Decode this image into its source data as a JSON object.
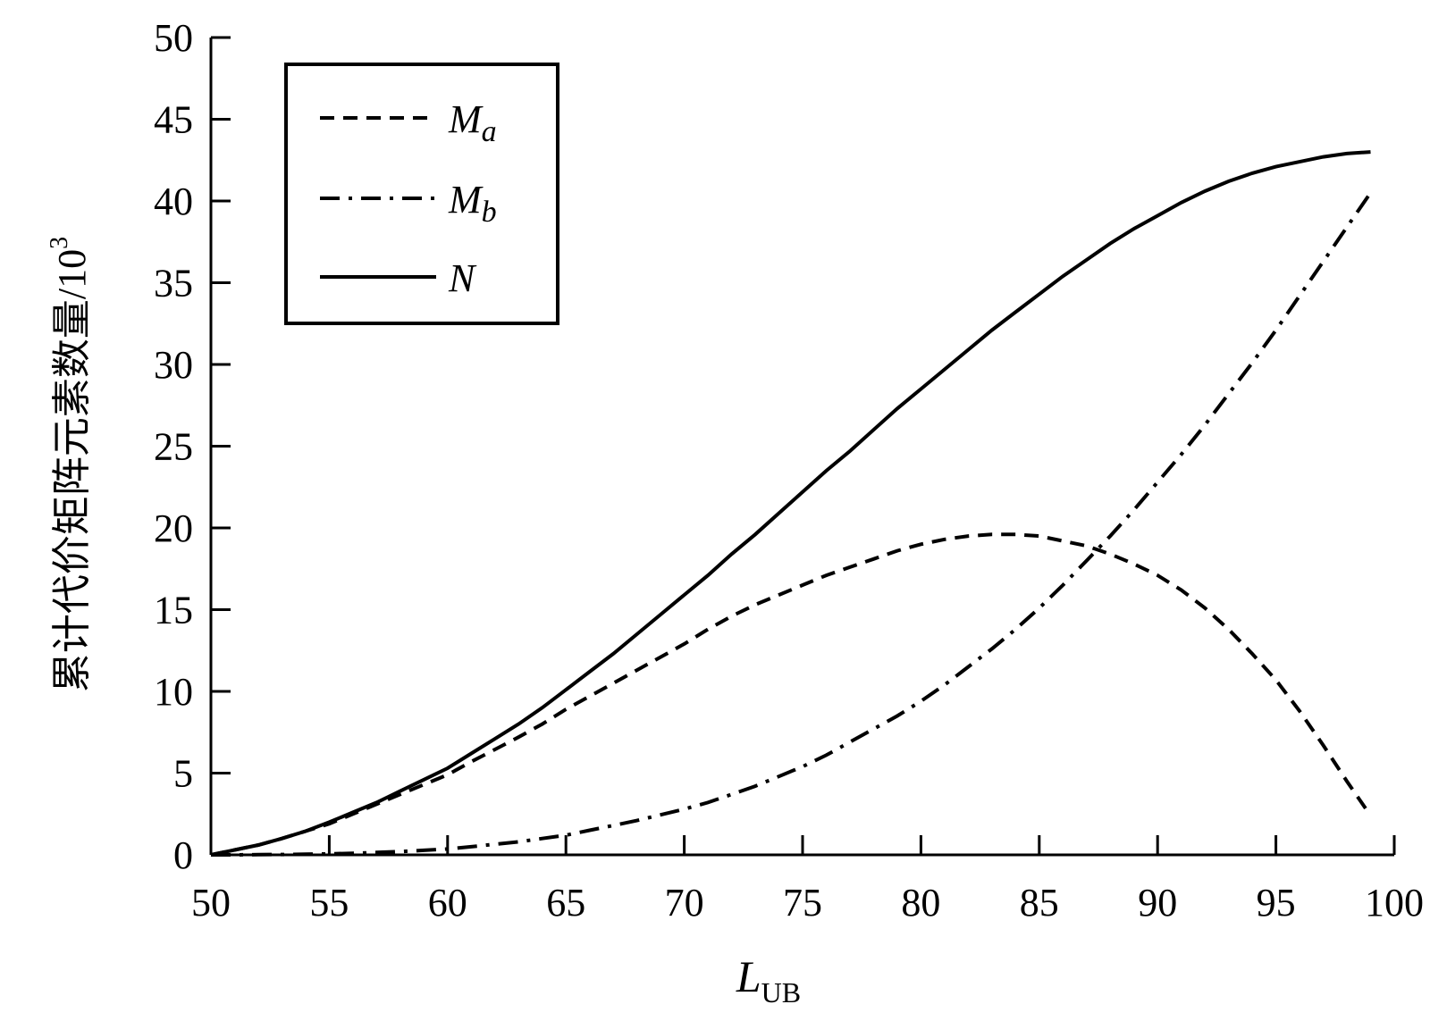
{
  "chart_data": {
    "type": "line",
    "title": "",
    "xlabel": {
      "main": "L",
      "sub": "UB"
    },
    "ylabel": {
      "text": "累计代价矩阵元素数量/10",
      "sup": "3"
    },
    "xlim": [
      50,
      100
    ],
    "ylim": [
      0,
      50
    ],
    "xticks": [
      "50",
      "55",
      "60",
      "65",
      "70",
      "75",
      "80",
      "85",
      "90",
      "95",
      "100"
    ],
    "yticks": [
      "0",
      "5",
      "10",
      "15",
      "20",
      "25",
      "30",
      "35",
      "40",
      "45",
      "50"
    ],
    "grid": false,
    "legend_position": "top-left",
    "x": [
      50,
      51,
      52,
      53,
      54,
      55,
      56,
      57,
      58,
      59,
      60,
      61,
      62,
      63,
      64,
      65,
      66,
      67,
      68,
      69,
      70,
      71,
      72,
      73,
      74,
      75,
      76,
      77,
      78,
      79,
      80,
      81,
      82,
      83,
      84,
      85,
      86,
      87,
      88,
      89,
      90,
      91,
      92,
      93,
      94,
      95,
      96,
      97,
      98,
      99
    ],
    "series": [
      {
        "name": "M",
        "sub": "a",
        "style": "dashed",
        "values": [
          0.0,
          0.3,
          0.6,
          1.0,
          1.45,
          1.9,
          2.5,
          3.1,
          3.7,
          4.3,
          4.9,
          5.7,
          6.45,
          7.2,
          8.0,
          8.9,
          9.7,
          10.5,
          11.3,
          12.1,
          12.9,
          13.8,
          14.6,
          15.3,
          15.9,
          16.5,
          17.1,
          17.6,
          18.1,
          18.6,
          19.0,
          19.3,
          19.5,
          19.6,
          19.6,
          19.5,
          19.2,
          18.9,
          18.4,
          17.8,
          17.1,
          16.2,
          15.1,
          13.8,
          12.3,
          10.7,
          8.8,
          6.7,
          4.5,
          2.4
        ]
      },
      {
        "name": "M",
        "sub": "b",
        "style": "dash-dot",
        "values": [
          0.0,
          0.0,
          0.01,
          0.02,
          0.04,
          0.06,
          0.1,
          0.15,
          0.2,
          0.28,
          0.36,
          0.5,
          0.65,
          0.8,
          1.0,
          1.2,
          1.5,
          1.8,
          2.1,
          2.45,
          2.8,
          3.2,
          3.7,
          4.2,
          4.8,
          5.4,
          6.1,
          6.9,
          7.7,
          8.5,
          9.4,
          10.4,
          11.5,
          12.6,
          13.8,
          15.1,
          16.5,
          18.0,
          19.5,
          21.1,
          22.8,
          24.5,
          26.3,
          28.2,
          30.1,
          32.1,
          34.2,
          36.3,
          38.4,
          40.5
        ]
      },
      {
        "name": "N",
        "sub": "",
        "style": "solid",
        "values": [
          0.0,
          0.3,
          0.6,
          1.0,
          1.45,
          2.0,
          2.6,
          3.2,
          3.9,
          4.6,
          5.3,
          6.2,
          7.1,
          8.0,
          9.0,
          10.1,
          11.2,
          12.3,
          13.5,
          14.7,
          15.9,
          17.1,
          18.4,
          19.6,
          20.9,
          22.2,
          23.5,
          24.7,
          26.0,
          27.3,
          28.5,
          29.7,
          30.9,
          32.1,
          33.2,
          34.3,
          35.4,
          36.4,
          37.4,
          38.3,
          39.1,
          39.9,
          40.6,
          41.2,
          41.7,
          42.1,
          42.4,
          42.7,
          42.9,
          43.0
        ]
      }
    ]
  }
}
